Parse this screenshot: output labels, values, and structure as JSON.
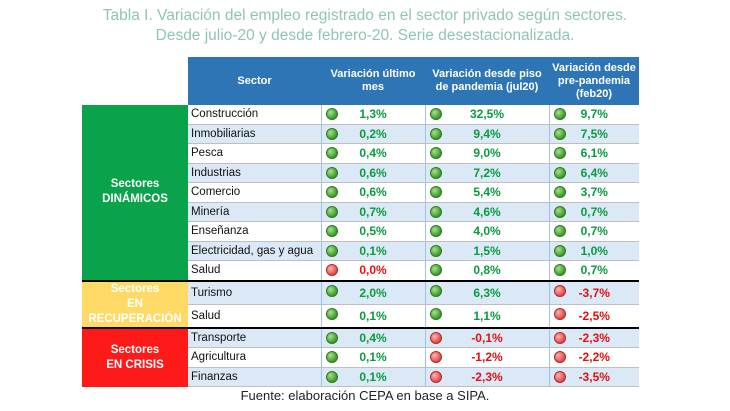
{
  "title": {
    "line1": "Tabla I. Variación del empleo registrado en el sector privado según sectores.",
    "line2": "Desde julio-20 y desde febrero-20. Serie desestacionalizada."
  },
  "headers": {
    "sector": "Sector",
    "col1": "Variación último mes",
    "col2": "Variación desde piso de pandemia (jul20)",
    "col3": "Variación desde pre-pandemia (feb20)"
  },
  "groups": {
    "dinamicos": {
      "line1": "Sectores",
      "line2": "DINÁMICOS",
      "color": "#0aa24a"
    },
    "recuperacion": {
      "line1": "Sectores",
      "line2": "EN RECUPERACIÓN",
      "color": "#ffd966"
    },
    "crisis": {
      "line1": "Sectores",
      "line2": "EN CRISIS",
      "color": "#ff1a1a"
    }
  },
  "status_colors": {
    "green": "#3a9a2a",
    "red": "#e04848"
  },
  "rows": [
    {
      "name": "Construcción",
      "v1": "1,3%",
      "s1": "green",
      "v2": "32,5%",
      "s2": "green",
      "v3": "9,7%",
      "s3": "green"
    },
    {
      "name": "Inmobiliarias",
      "v1": "0,2%",
      "s1": "green",
      "v2": "9,4%",
      "s2": "green",
      "v3": "7,5%",
      "s3": "green"
    },
    {
      "name": "Pesca",
      "v1": "0,4%",
      "s1": "green",
      "v2": "9,0%",
      "s2": "green",
      "v3": "6,1%",
      "s3": "green"
    },
    {
      "name": "Industrias",
      "v1": "0,6%",
      "s1": "green",
      "v2": "7,2%",
      "s2": "green",
      "v3": "6,4%",
      "s3": "green"
    },
    {
      "name": "Comercio",
      "v1": "0,6%",
      "s1": "green",
      "v2": "5,4%",
      "s2": "green",
      "v3": "3,7%",
      "s3": "green"
    },
    {
      "name": "Minería",
      "v1": "0,7%",
      "s1": "green",
      "v2": "4,6%",
      "s2": "green",
      "v3": "0,7%",
      "s3": "green"
    },
    {
      "name": "Enseñanza",
      "v1": "0,5%",
      "s1": "green",
      "v2": "4,0%",
      "s2": "green",
      "v3": "0,7%",
      "s3": "green"
    },
    {
      "name": "Electricidad, gas y agua",
      "v1": "0,1%",
      "s1": "green",
      "v2": "1,5%",
      "s2": "green",
      "v3": "1,0%",
      "s3": "green"
    },
    {
      "name": "Salud",
      "v1": "0,0%",
      "s1": "red",
      "v2": "0,8%",
      "s2": "green",
      "v3": "0,7%",
      "s3": "green"
    },
    {
      "name": "Turismo",
      "v1": "2,0%",
      "s1": "green",
      "v2": "6,3%",
      "s2": "green",
      "v3": "-3,7%",
      "s3": "red"
    },
    {
      "name": "Salud",
      "v1": "0,1%",
      "s1": "green",
      "v2": "1,1%",
      "s2": "green",
      "v3": "-2,5%",
      "s3": "red"
    },
    {
      "name": "Transporte",
      "v1": "0,4%",
      "s1": "green",
      "v2": "-0,1%",
      "s2": "red",
      "v3": "-2,3%",
      "s3": "red"
    },
    {
      "name": "Agricultura",
      "v1": "0,1%",
      "s1": "green",
      "v2": "-1,2%",
      "s2": "red",
      "v3": "-2,2%",
      "s3": "red"
    },
    {
      "name": "Finanzas",
      "v1": "0,1%",
      "s1": "green",
      "v2": "-2,3%",
      "s2": "red",
      "v3": "-3,5%",
      "s3": "red"
    }
  ],
  "source": "Fuente: elaboración CEPA en base a SIPA."
}
